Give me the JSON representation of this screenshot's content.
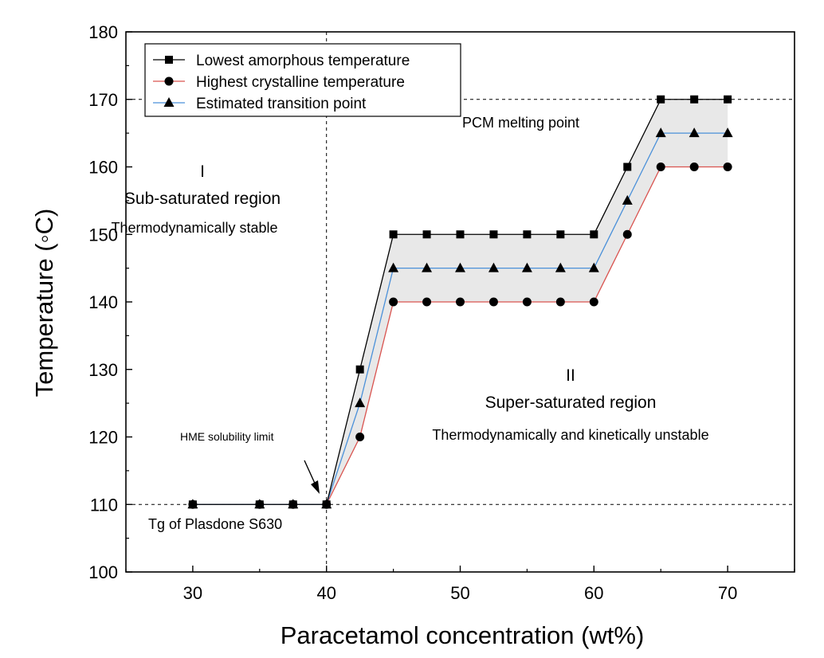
{
  "chart_data": {
    "type": "line",
    "xlabel": "Paracetamol concentration (wt%)",
    "ylabel": "Temperature (◦C)",
    "xlim": [
      25,
      75
    ],
    "ylim": [
      100,
      180
    ],
    "x_ticks": [
      30,
      40,
      50,
      60,
      70
    ],
    "y_ticks": [
      100,
      110,
      120,
      130,
      140,
      150,
      160,
      170,
      180
    ],
    "grid": false,
    "legend_position": "top-left",
    "shaded_band": {
      "between": [
        "Lowest amorphous temperature",
        "Highest crystalline temperature"
      ],
      "color": "#d9d9d9"
    },
    "x": [
      30,
      35,
      37.5,
      40,
      42.5,
      45,
      47.5,
      50,
      52.5,
      55,
      57.5,
      60,
      62.5,
      65,
      67.5,
      70
    ],
    "series": [
      {
        "name": "Lowest amorphous temperature",
        "marker": "square",
        "line_color": "#000000",
        "values": [
          110,
          110,
          110,
          110,
          130,
          150,
          150,
          150,
          150,
          150,
          150,
          150,
          160,
          170,
          170,
          170
        ]
      },
      {
        "name": "Highest crystalline temperature",
        "marker": "circle",
        "line_color": "#d9534f",
        "values": [
          110,
          110,
          110,
          110,
          120,
          140,
          140,
          140,
          140,
          140,
          140,
          140,
          150,
          160,
          160,
          160
        ]
      },
      {
        "name": "Estimated transition point",
        "marker": "triangle",
        "line_color": "#4a90d9",
        "values": [
          110,
          110,
          110,
          110,
          125,
          145,
          145,
          145,
          145,
          145,
          145,
          145,
          155,
          165,
          165,
          165
        ]
      }
    ],
    "reference_lines": [
      {
        "orientation": "horizontal",
        "value": 170,
        "style": "dashed"
      },
      {
        "orientation": "horizontal",
        "value": 110,
        "style": "dashed"
      },
      {
        "orientation": "vertical",
        "value": 40,
        "style": "dashed"
      }
    ],
    "annotations": {
      "pcm": "PCM melting point",
      "tg": "Tg of Plasdone S630",
      "hme": "HME solubility limit",
      "region1_num": "I",
      "region1_name": "Sub-saturated region",
      "region1_desc": "Thermodynamically stable",
      "region2_num": "II",
      "region2_name": "Super-saturated region",
      "region2_desc": "Thermodynamically and kinetically unstable"
    }
  }
}
